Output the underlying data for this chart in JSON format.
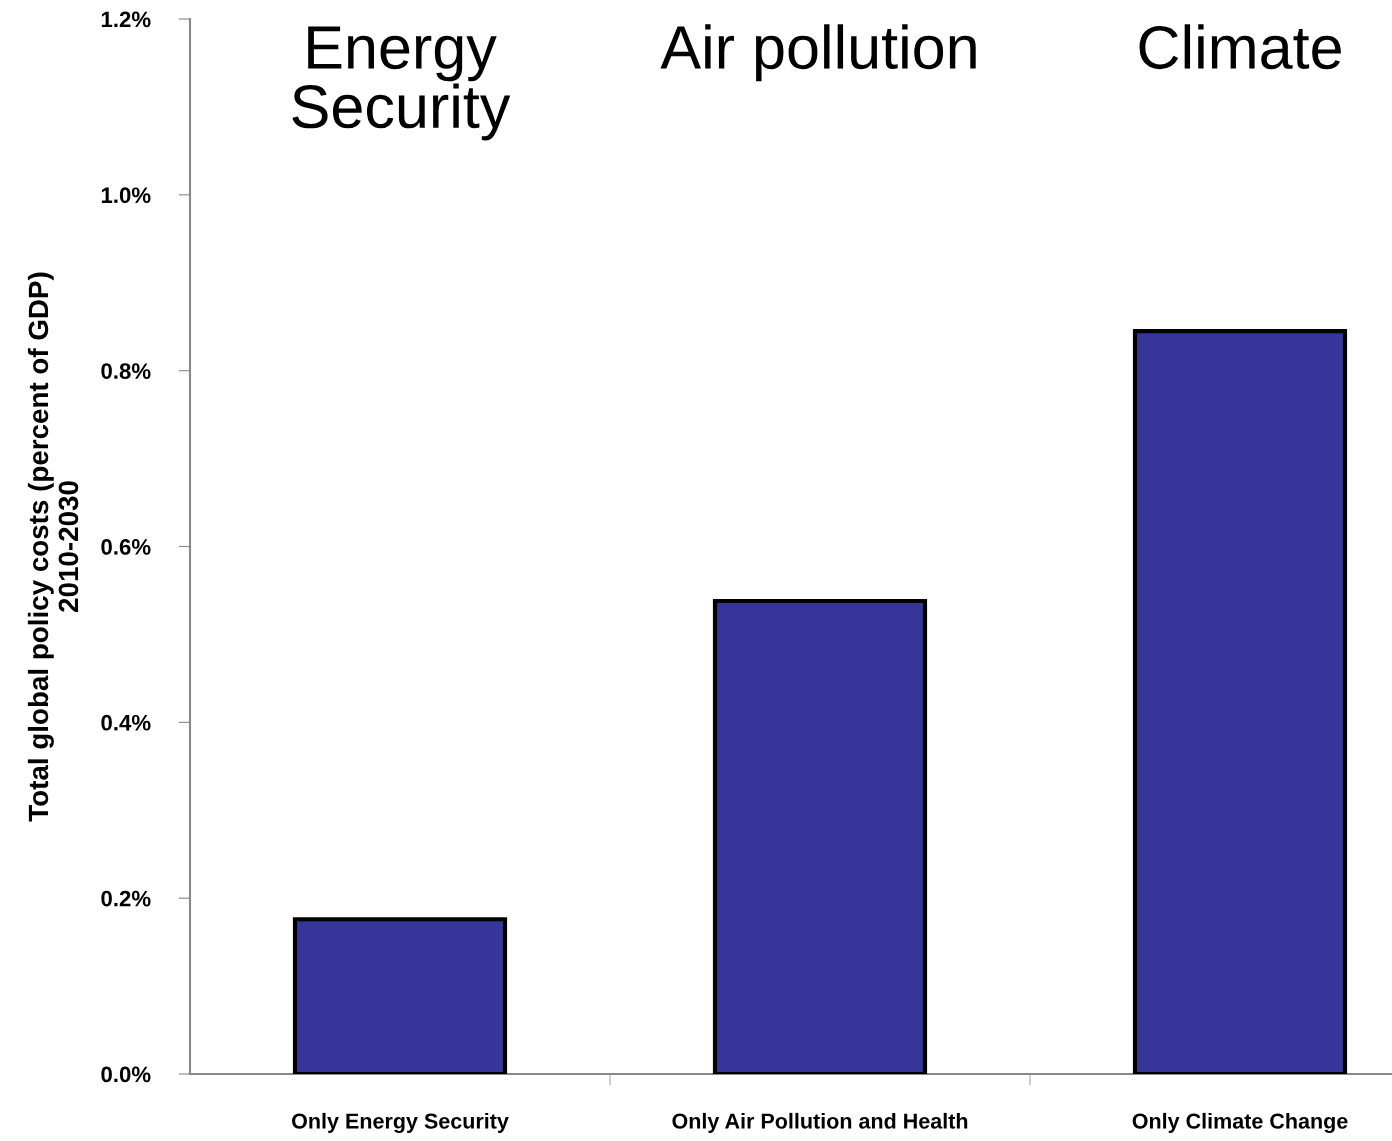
{
  "chart_data": {
    "type": "bar",
    "ylabel": "Total global policy costs (percent of GDP)\n2010-2030",
    "categories": [
      "Only Energy Security",
      "Only Air Pollution and Health",
      "Only Climate Change"
    ],
    "values": [
      0.176,
      0.538,
      0.845
    ],
    "color": "#35359a",
    "ylim": [
      0,
      1.2
    ],
    "yticks": [
      {
        "value": 0,
        "label": "0.0%"
      },
      {
        "value": 0.2,
        "label": "0.2%"
      },
      {
        "value": 0.4,
        "label": "0.4%"
      },
      {
        "value": 0.6,
        "label": "0.6%"
      },
      {
        "value": 0.8,
        "label": "0.8%"
      },
      {
        "value": 1.0,
        "label": "1.0%"
      },
      {
        "value": 1.2,
        "label": "1.2%"
      }
    ],
    "grid": false,
    "annotations": [
      "Energy\nSecurity",
      "Air pollution",
      "Climate"
    ]
  }
}
